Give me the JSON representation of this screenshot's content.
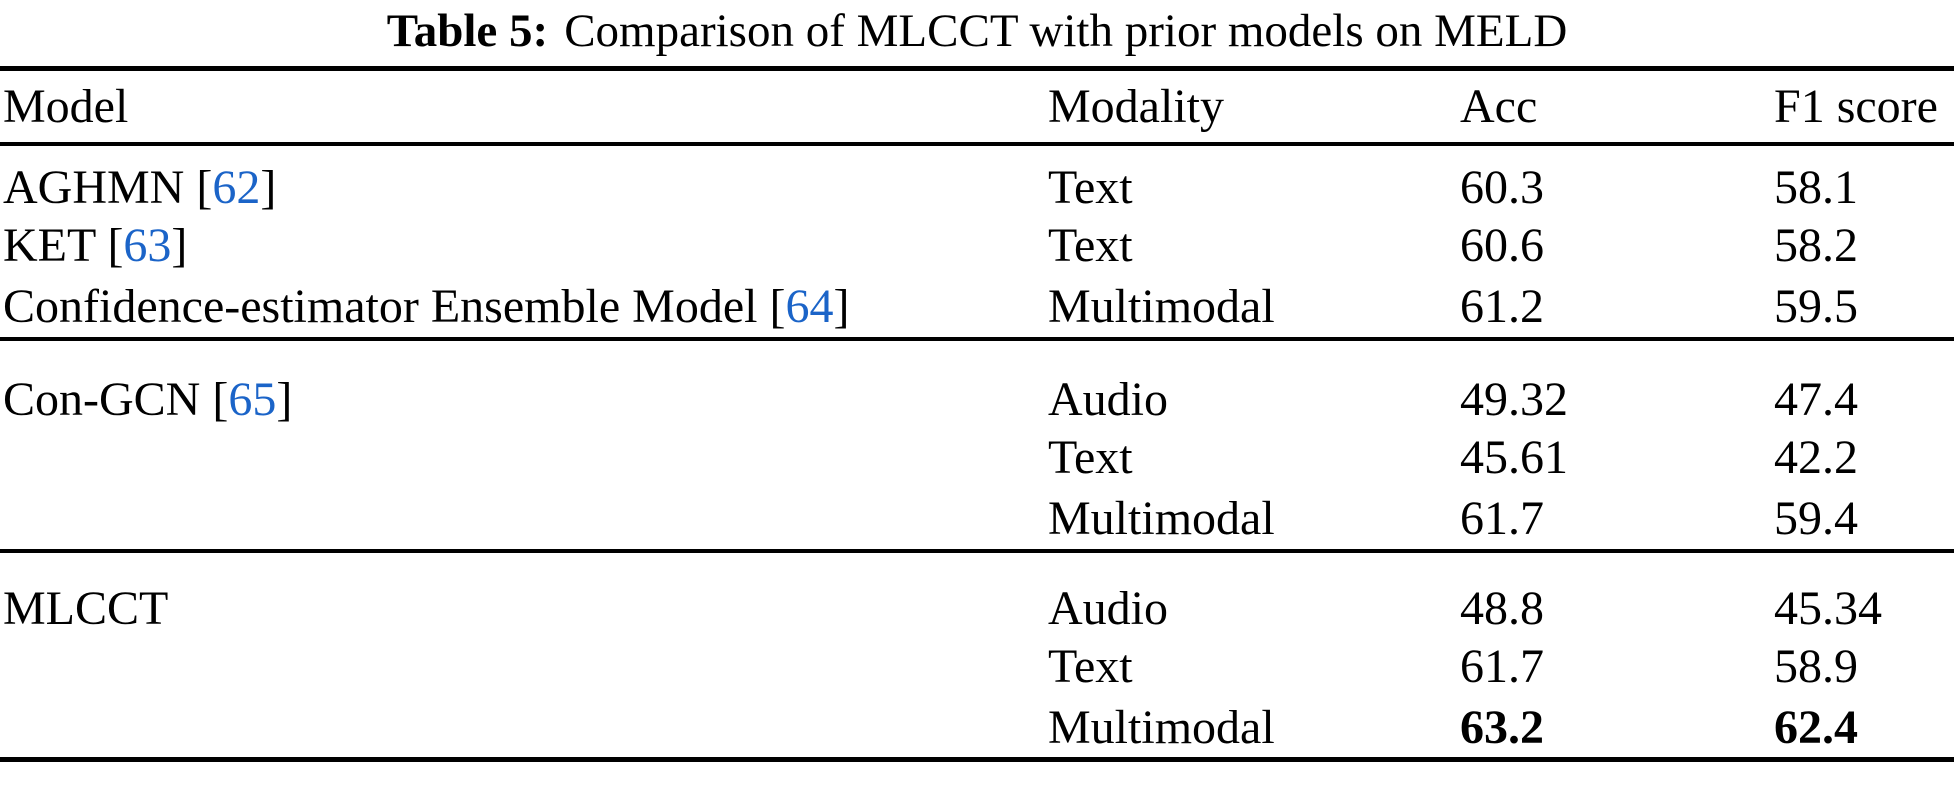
{
  "caption": {
    "label": "Table 5:",
    "text": "Comparison of MLCCT with prior models on MELD"
  },
  "columns": [
    "Model",
    "Modality",
    "Acc",
    "F1 score"
  ],
  "symbols": {
    "cite_open": "[",
    "cite_close": "]"
  },
  "colors": {
    "text": "#000000",
    "citation_blue": "#1b64c8",
    "rule": "#000000"
  },
  "groups": [
    {
      "rows": [
        {
          "model": "AGHMN",
          "cite": "62",
          "modality": "Text",
          "acc": "60.3",
          "f1": "58.1",
          "bold": false
        },
        {
          "model": "KET",
          "cite": "63",
          "modality": "Text",
          "acc": "60.6",
          "f1": "58.2",
          "bold": false
        },
        {
          "model": "Confidence-estimator Ensemble Model",
          "cite": "64",
          "modality": "Multimodal",
          "acc": "61.2",
          "f1": "59.5",
          "bold": false
        }
      ]
    },
    {
      "rows": [
        {
          "model": "Con-GCN",
          "cite": "65",
          "modality": "Audio",
          "acc": "49.32",
          "f1": "47.4",
          "bold": false
        },
        {
          "model": "",
          "cite": "",
          "modality": "Text",
          "acc": "45.61",
          "f1": "42.2",
          "bold": false
        },
        {
          "model": "",
          "cite": "",
          "modality": "Multimodal",
          "acc": "61.7",
          "f1": "59.4",
          "bold": false
        }
      ]
    },
    {
      "rows": [
        {
          "model": "MLCCT",
          "cite": "",
          "modality": "Audio",
          "acc": "48.8",
          "f1": "45.34",
          "bold": false
        },
        {
          "model": "",
          "cite": "",
          "modality": "Text",
          "acc": "61.7",
          "f1": "58.9",
          "bold": false
        },
        {
          "model": "",
          "cite": "",
          "modality": "Multimodal",
          "acc": "63.2",
          "f1": "62.4",
          "bold": true
        }
      ]
    }
  ]
}
